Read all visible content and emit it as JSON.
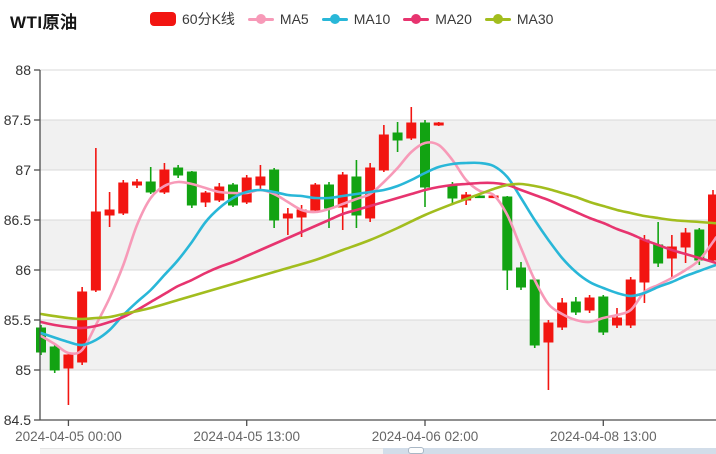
{
  "header": {
    "title": "WTI原油",
    "legend": [
      {
        "id": "kline",
        "label": "60分K线",
        "type": "rect",
        "color": "#f21511"
      },
      {
        "id": "ma5",
        "label": "MA5",
        "type": "line",
        "color": "#f79ab8"
      },
      {
        "id": "ma10",
        "label": "MA10",
        "type": "line",
        "color": "#29b7d8"
      },
      {
        "id": "ma20",
        "label": "MA20",
        "type": "line",
        "color": "#e7346f"
      },
      {
        "id": "ma30",
        "label": "MA30",
        "type": "line",
        "color": "#a2bd1e"
      }
    ]
  },
  "chart_data": {
    "type": "candlestick",
    "title": "WTI原油",
    "period_label": "60分K线",
    "ylim": [
      84.5,
      88
    ],
    "y_ticks": [
      88,
      87.5,
      87,
      86.5,
      86,
      85.5,
      85,
      84.5
    ],
    "x_ticks": [
      {
        "index": 2,
        "label": "2024-04-05 00:00"
      },
      {
        "index": 15,
        "label": "2024-04-05 13:00"
      },
      {
        "index": 28,
        "label": "2024-04-06 02:00"
      },
      {
        "index": 41,
        "label": "2024-04-08 13:00"
      }
    ],
    "up_color": "#f21511",
    "down_color": "#12a312",
    "stripe_color": "#f1f1f1",
    "grid_color": "#d9d9d9",
    "axis_color": "#4d4d4d",
    "y_label_color": "#333333",
    "x_label_color": "#666666",
    "candles": [
      [
        85.42,
        85.18,
        85.15,
        85.45
      ],
      [
        85.23,
        85.0,
        84.97,
        85.27
      ],
      [
        85.02,
        85.15,
        84.65,
        85.18
      ],
      [
        85.08,
        85.78,
        85.05,
        85.83
      ],
      [
        85.8,
        86.58,
        85.78,
        87.22
      ],
      [
        86.55,
        86.6,
        86.43,
        86.78
      ],
      [
        86.57,
        86.87,
        86.55,
        86.9
      ],
      [
        86.85,
        86.88,
        86.82,
        86.91
      ],
      [
        86.88,
        86.78,
        86.76,
        87.03
      ],
      [
        86.78,
        87.0,
        86.76,
        87.07
      ],
      [
        87.02,
        86.95,
        86.92,
        87.05
      ],
      [
        86.98,
        86.65,
        86.62,
        86.99
      ],
      [
        86.68,
        86.77,
        86.63,
        86.79
      ],
      [
        86.7,
        86.83,
        86.68,
        86.87
      ],
      [
        86.85,
        86.65,
        86.63,
        86.87
      ],
      [
        86.68,
        86.92,
        86.66,
        86.95
      ],
      [
        86.85,
        86.93,
        86.8,
        87.05
      ],
      [
        87.0,
        86.5,
        86.42,
        87.02
      ],
      [
        86.52,
        86.56,
        86.35,
        86.62
      ],
      [
        86.53,
        86.6,
        86.33,
        86.65
      ],
      [
        86.6,
        86.85,
        86.57,
        86.87
      ],
      [
        86.85,
        86.62,
        86.42,
        86.88
      ],
      [
        86.63,
        86.95,
        86.4,
        86.98
      ],
      [
        86.93,
        86.55,
        86.42,
        87.1
      ],
      [
        86.52,
        87.02,
        86.48,
        87.07
      ],
      [
        87.0,
        87.35,
        86.98,
        87.45
      ],
      [
        87.37,
        87.3,
        87.18,
        87.48
      ],
      [
        87.32,
        87.47,
        87.3,
        87.63
      ],
      [
        87.47,
        86.83,
        86.63,
        87.5
      ],
      [
        87.45,
        87.47,
        87.44,
        87.48
      ],
      [
        86.85,
        86.72,
        86.65,
        86.88
      ],
      [
        86.7,
        86.75,
        86.65,
        86.78
      ],
      [
        86.74,
        86.73,
        86.72,
        86.74
      ],
      [
        86.73,
        86.74,
        86.72,
        86.75
      ],
      [
        86.73,
        86.0,
        85.8,
        86.74
      ],
      [
        86.02,
        85.83,
        85.8,
        86.08
      ],
      [
        85.9,
        85.25,
        85.22,
        85.92
      ],
      [
        85.28,
        85.47,
        84.8,
        85.5
      ],
      [
        85.43,
        85.67,
        85.4,
        85.72
      ],
      [
        85.68,
        85.58,
        85.55,
        85.73
      ],
      [
        85.6,
        85.72,
        85.57,
        85.75
      ],
      [
        85.73,
        85.38,
        85.35,
        85.75
      ],
      [
        85.45,
        85.52,
        85.42,
        85.62
      ],
      [
        85.45,
        85.9,
        85.42,
        85.93
      ],
      [
        85.88,
        86.3,
        85.67,
        86.35
      ],
      [
        86.25,
        86.07,
        86.03,
        86.48
      ],
      [
        86.12,
        86.23,
        85.93,
        86.35
      ],
      [
        86.23,
        86.37,
        86.07,
        86.42
      ],
      [
        86.4,
        86.1,
        86.05,
        86.42
      ],
      [
        86.1,
        86.75,
        86.08,
        86.8
      ]
    ],
    "series": [
      {
        "name": "MA5",
        "color": "#f79ab8",
        "points": [
          [
            0,
            85.34
          ],
          [
            1,
            85.26
          ],
          [
            2,
            85.17
          ],
          [
            3,
            85.2
          ],
          [
            4,
            85.45
          ],
          [
            5,
            85.72
          ],
          [
            6,
            86.05
          ],
          [
            7,
            86.45
          ],
          [
            8,
            86.72
          ],
          [
            9,
            86.84
          ],
          [
            10,
            86.88
          ],
          [
            11,
            86.86
          ],
          [
            12,
            86.82
          ],
          [
            13,
            86.78
          ],
          [
            14,
            86.77
          ],
          [
            15,
            86.77
          ],
          [
            16,
            86.8
          ],
          [
            17,
            86.76
          ],
          [
            18,
            86.68
          ],
          [
            19,
            86.6
          ],
          [
            20,
            86.58
          ],
          [
            21,
            86.61
          ],
          [
            22,
            86.66
          ],
          [
            23,
            86.71
          ],
          [
            24,
            86.76
          ],
          [
            25,
            86.88
          ],
          [
            26,
            87.02
          ],
          [
            27,
            87.18
          ],
          [
            28,
            87.27
          ],
          [
            29,
            87.25
          ],
          [
            30,
            87.1
          ],
          [
            31,
            86.9
          ],
          [
            32,
            86.79
          ],
          [
            33,
            86.75
          ],
          [
            34,
            86.55
          ],
          [
            35,
            86.22
          ],
          [
            36,
            85.9
          ],
          [
            37,
            85.66
          ],
          [
            38,
            85.56
          ],
          [
            39,
            85.5
          ],
          [
            40,
            85.48
          ],
          [
            41,
            85.52
          ],
          [
            42,
            85.55
          ],
          [
            43,
            85.6
          ],
          [
            44,
            85.78
          ],
          [
            45,
            85.85
          ],
          [
            46,
            85.92
          ],
          [
            47,
            86.0
          ],
          [
            48,
            86.1
          ],
          [
            49,
            86.28
          ]
        ]
      },
      {
        "name": "MA10",
        "color": "#29b7d8",
        "points": [
          [
            0,
            85.37
          ],
          [
            2,
            85.28
          ],
          [
            3,
            85.25
          ],
          [
            4,
            85.3
          ],
          [
            5,
            85.4
          ],
          [
            6,
            85.55
          ],
          [
            7,
            85.68
          ],
          [
            8,
            85.8
          ],
          [
            9,
            85.95
          ],
          [
            10,
            86.1
          ],
          [
            11,
            86.28
          ],
          [
            12,
            86.48
          ],
          [
            13,
            86.62
          ],
          [
            14,
            86.72
          ],
          [
            15,
            86.78
          ],
          [
            16,
            86.8
          ],
          [
            17,
            86.78
          ],
          [
            18,
            86.75
          ],
          [
            19,
            86.74
          ],
          [
            20,
            86.72
          ],
          [
            21,
            86.72
          ],
          [
            22,
            86.74
          ],
          [
            23,
            86.76
          ],
          [
            24,
            86.78
          ],
          [
            25,
            86.8
          ],
          [
            26,
            86.84
          ],
          [
            27,
            86.9
          ],
          [
            28,
            86.97
          ],
          [
            29,
            87.03
          ],
          [
            30,
            87.06
          ],
          [
            31,
            87.07
          ],
          [
            32,
            87.07
          ],
          [
            33,
            87.04
          ],
          [
            34,
            86.93
          ],
          [
            35,
            86.72
          ],
          [
            36,
            86.5
          ],
          [
            37,
            86.3
          ],
          [
            38,
            86.12
          ],
          [
            39,
            85.98
          ],
          [
            40,
            85.88
          ],
          [
            41,
            85.82
          ],
          [
            42,
            85.77
          ],
          [
            43,
            85.74
          ],
          [
            44,
            85.77
          ],
          [
            45,
            85.83
          ],
          [
            46,
            85.88
          ],
          [
            47,
            85.94
          ],
          [
            48,
            85.99
          ],
          [
            49,
            86.04
          ]
        ]
      },
      {
        "name": "MA20",
        "color": "#e7346f",
        "points": [
          [
            0,
            85.48
          ],
          [
            1,
            85.45
          ],
          [
            2,
            85.43
          ],
          [
            3,
            85.42
          ],
          [
            4,
            85.44
          ],
          [
            5,
            85.48
          ],
          [
            6,
            85.53
          ],
          [
            7,
            85.6
          ],
          [
            8,
            85.68
          ],
          [
            9,
            85.76
          ],
          [
            10,
            85.84
          ],
          [
            11,
            85.9
          ],
          [
            12,
            85.97
          ],
          [
            13,
            86.03
          ],
          [
            14,
            86.08
          ],
          [
            15,
            86.14
          ],
          [
            16,
            86.2
          ],
          [
            17,
            86.26
          ],
          [
            18,
            86.32
          ],
          [
            19,
            86.38
          ],
          [
            20,
            86.44
          ],
          [
            21,
            86.5
          ],
          [
            22,
            86.56
          ],
          [
            23,
            86.6
          ],
          [
            24,
            86.64
          ],
          [
            25,
            86.68
          ],
          [
            26,
            86.72
          ],
          [
            27,
            86.76
          ],
          [
            28,
            86.8
          ],
          [
            29,
            86.83
          ],
          [
            30,
            86.85
          ],
          [
            31,
            86.86
          ],
          [
            32,
            86.87
          ],
          [
            33,
            86.87
          ],
          [
            34,
            86.85
          ],
          [
            35,
            86.8
          ],
          [
            36,
            86.75
          ],
          [
            37,
            86.7
          ],
          [
            38,
            86.64
          ],
          [
            39,
            86.58
          ],
          [
            40,
            86.52
          ],
          [
            41,
            86.47
          ],
          [
            42,
            86.41
          ],
          [
            43,
            86.36
          ],
          [
            44,
            86.3
          ],
          [
            45,
            86.25
          ],
          [
            46,
            86.2
          ],
          [
            47,
            86.16
          ],
          [
            48,
            86.12
          ],
          [
            49,
            86.08
          ]
        ]
      },
      {
        "name": "MA30",
        "color": "#a2bd1e",
        "points": [
          [
            0,
            85.56
          ],
          [
            2,
            85.52
          ],
          [
            3,
            85.51
          ],
          [
            4,
            85.52
          ],
          [
            5,
            85.53
          ],
          [
            6,
            85.56
          ],
          [
            8,
            85.62
          ],
          [
            10,
            85.7
          ],
          [
            12,
            85.78
          ],
          [
            14,
            85.86
          ],
          [
            16,
            85.94
          ],
          [
            18,
            86.02
          ],
          [
            20,
            86.1
          ],
          [
            22,
            86.2
          ],
          [
            24,
            86.3
          ],
          [
            26,
            86.42
          ],
          [
            28,
            86.55
          ],
          [
            30,
            86.66
          ],
          [
            32,
            86.76
          ],
          [
            33,
            86.81
          ],
          [
            34,
            86.85
          ],
          [
            35,
            86.86
          ],
          [
            36,
            86.84
          ],
          [
            37,
            86.81
          ],
          [
            38,
            86.77
          ],
          [
            39,
            86.73
          ],
          [
            40,
            86.68
          ],
          [
            41,
            86.64
          ],
          [
            42,
            86.6
          ],
          [
            43,
            86.57
          ],
          [
            44,
            86.54
          ],
          [
            45,
            86.52
          ],
          [
            46,
            86.5
          ],
          [
            48,
            86.48
          ],
          [
            49,
            86.47
          ]
        ]
      }
    ]
  }
}
